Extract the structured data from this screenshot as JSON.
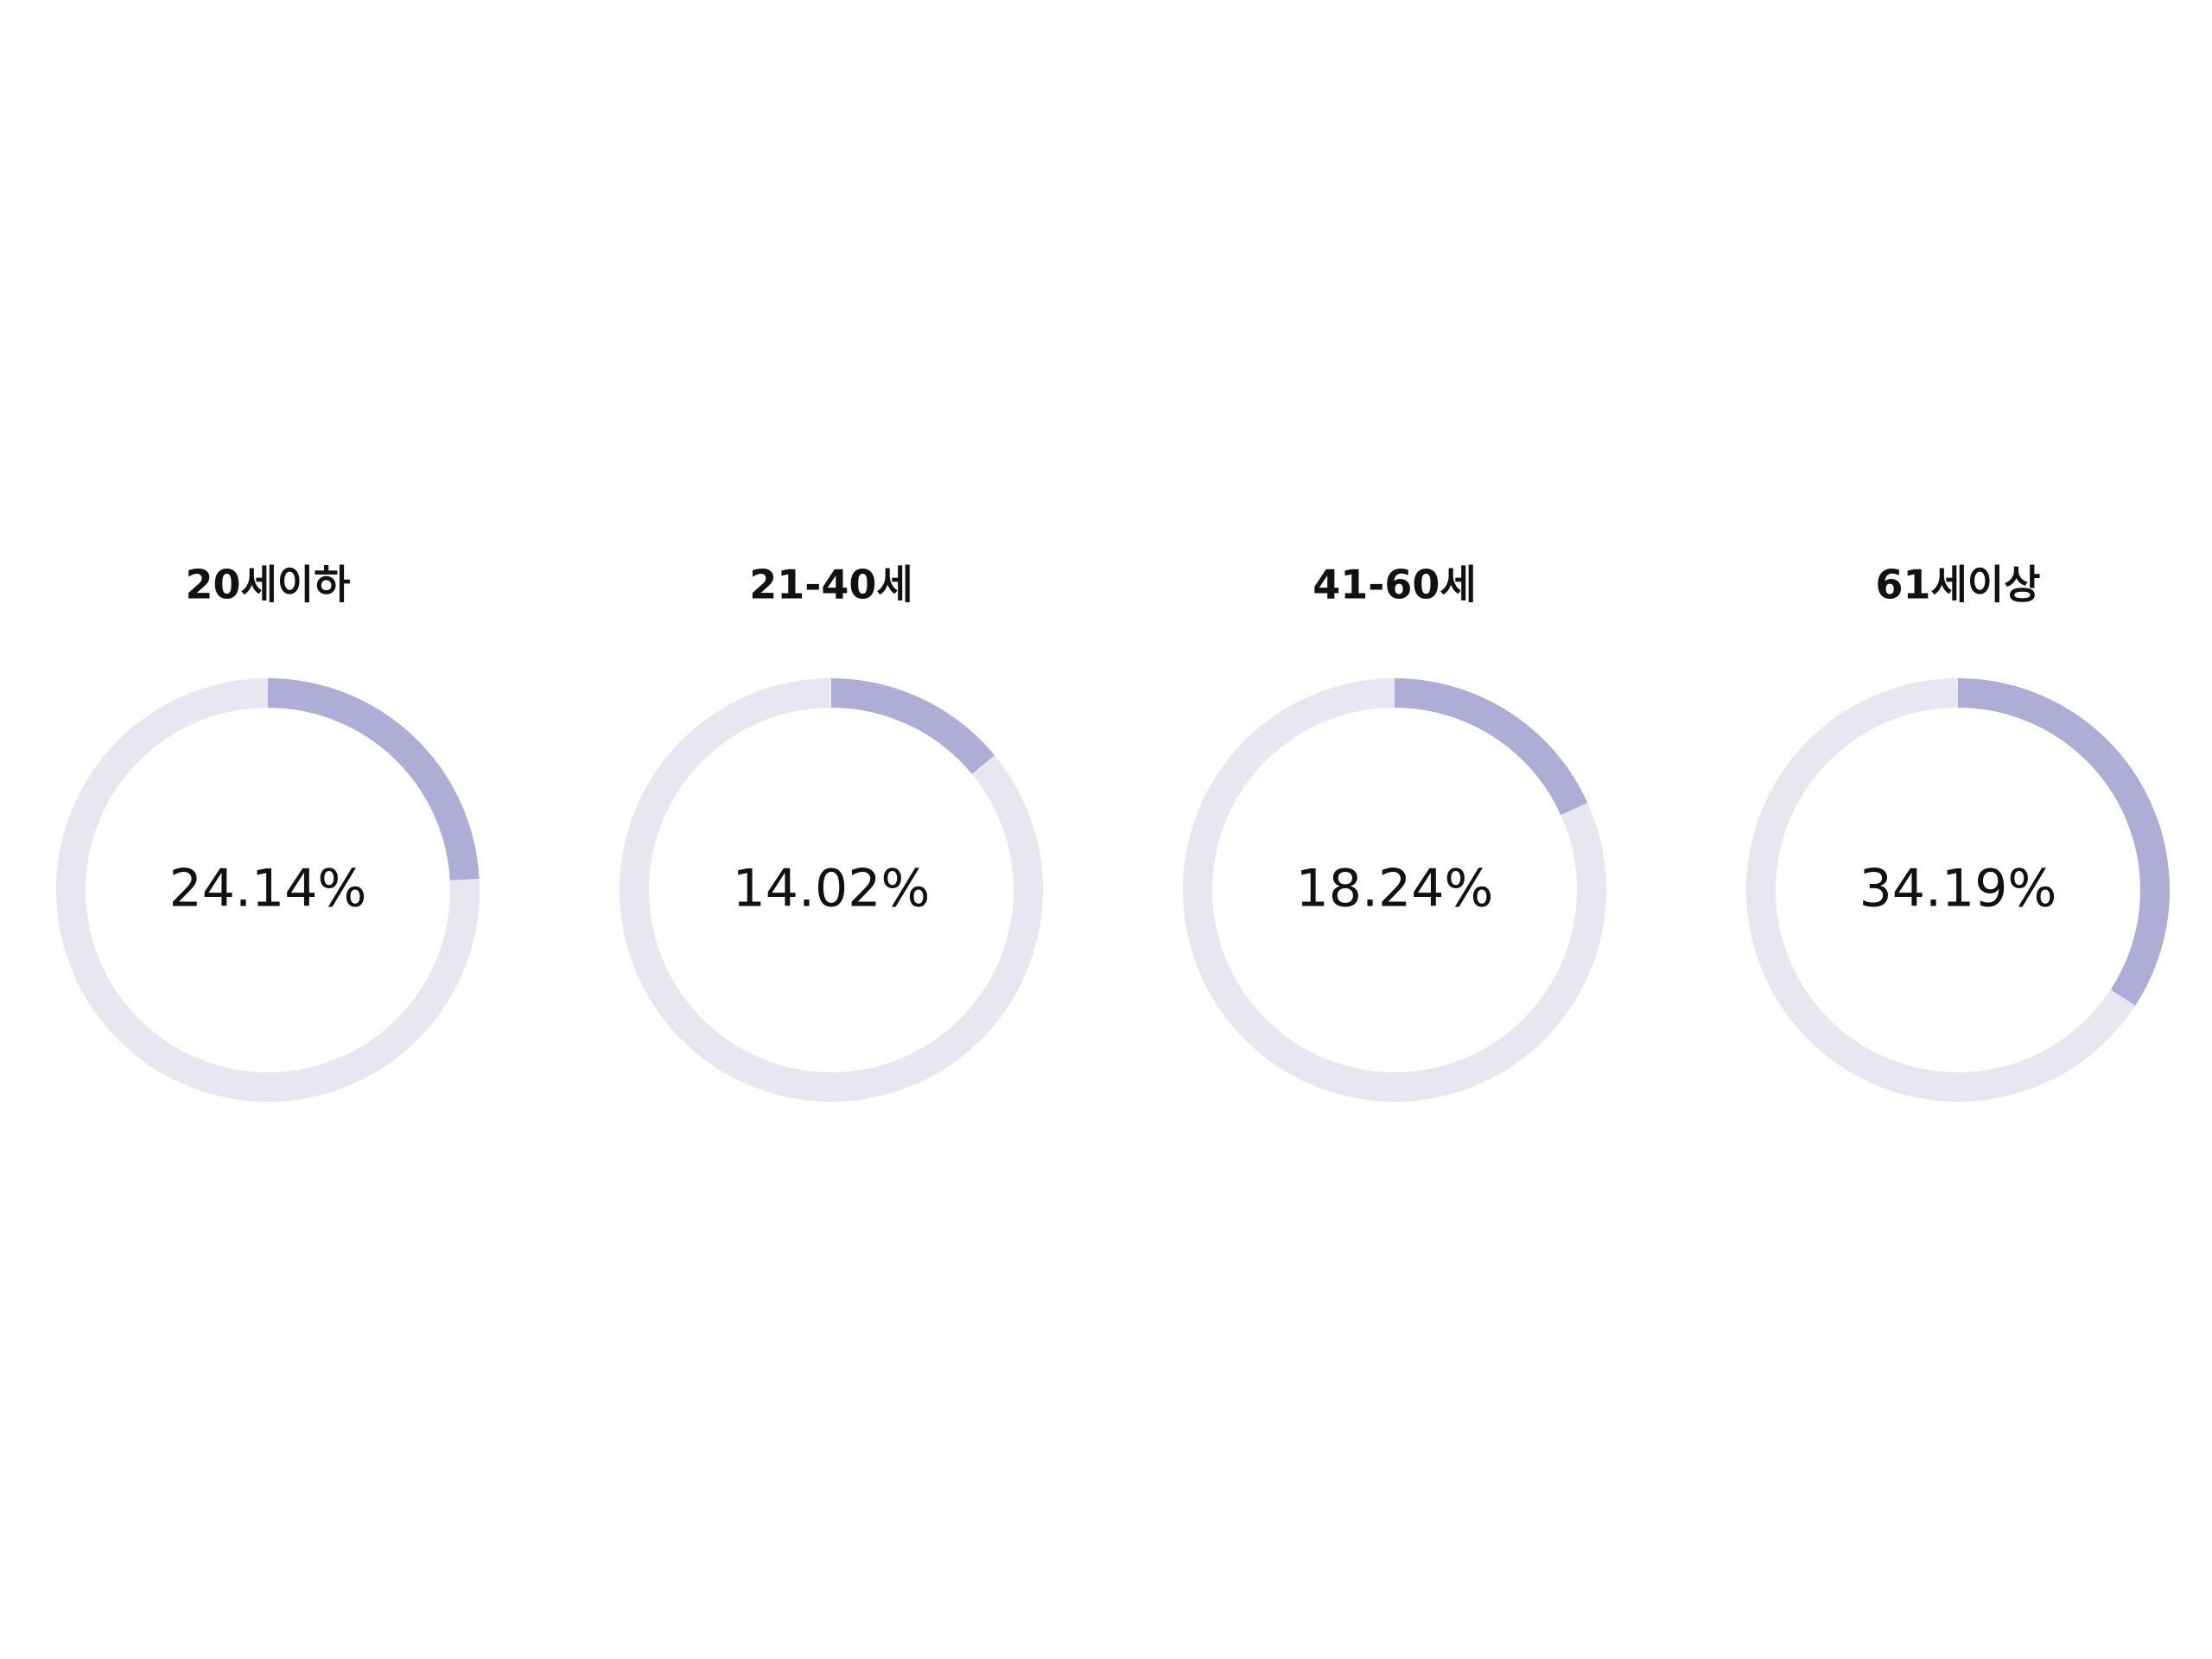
{
  "chart_data": {
    "type": "pie",
    "variant": "progress-donut",
    "categories": [
      "20세이하",
      "21-40세",
      "41-60세",
      "61세이상"
    ],
    "values": [
      24.14,
      14.02,
      18.24,
      34.19
    ],
    "value_labels": [
      "24.14%",
      "14.02%",
      "18.24%",
      "34.19%"
    ],
    "max": 100,
    "colors": {
      "filled": "#adadd6",
      "track": "#e8e6f0"
    }
  }
}
